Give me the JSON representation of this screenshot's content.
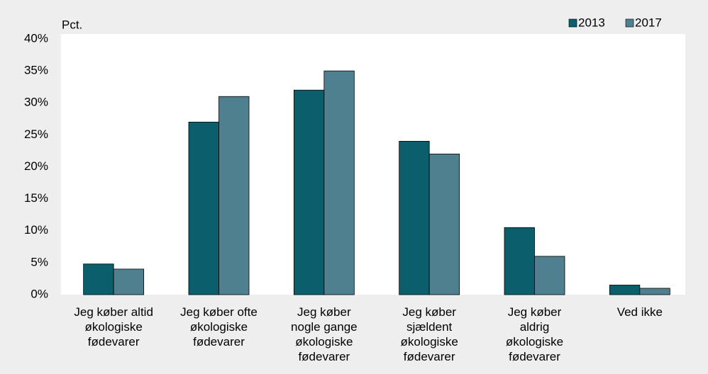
{
  "chart_data": {
    "type": "bar",
    "y_axis_label": "Pct.",
    "categories": [
      "Jeg køber altid\nøkologiske\nfødevarer",
      "Jeg køber ofte\nøkologiske\nfødevarer",
      "Jeg køber\nnogle gange\nøkologiske\nfødevarer",
      "Jeg køber\nsjældent\nøkologiske\nfødevarer",
      "Jeg køber\naldrig\nøkologiske\nfødevarer",
      "Ved ikke"
    ],
    "series": [
      {
        "name": "2013",
        "color": "#0b5f6d",
        "values": [
          4.8,
          27,
          32,
          24,
          10.5,
          1.5
        ]
      },
      {
        "name": "2017",
        "color": "#4f8090",
        "values": [
          4,
          31,
          35,
          22,
          6,
          1
        ]
      }
    ],
    "ylim": [
      0,
      40
    ],
    "yticks": [
      {
        "value": 0,
        "label": "0%"
      },
      {
        "value": 5,
        "label": "5%"
      },
      {
        "value": 10,
        "label": "10%"
      },
      {
        "value": 15,
        "label": "15%"
      },
      {
        "value": 20,
        "label": "20%"
      },
      {
        "value": 25,
        "label": "25%"
      },
      {
        "value": 30,
        "label": "30%"
      },
      {
        "value": 35,
        "label": "35%"
      },
      {
        "value": 40,
        "label": "40%"
      }
    ],
    "legend": "top-right"
  }
}
